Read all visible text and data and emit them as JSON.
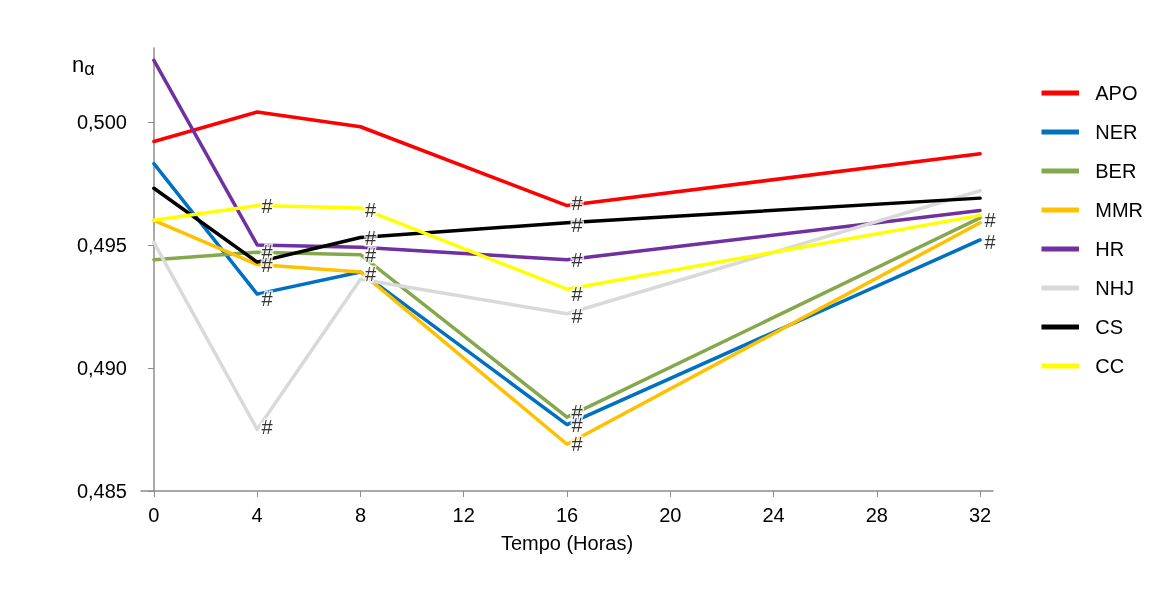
{
  "chart_data": {
    "type": "line",
    "xlabel": "Tempo (Horas)",
    "ylabel": "n$_{α}$",
    "x": [
      0,
      4,
      8,
      16,
      32
    ],
    "xlim": [
      -0.5,
      32.5
    ],
    "xticks": [
      0,
      4,
      8,
      12,
      16,
      20,
      24,
      28,
      32
    ],
    "ylim": [
      0.485,
      0.503
    ],
    "yticks": [
      {
        "value": 0.485,
        "label": "0,485"
      },
      {
        "value": 0.49,
        "label": "0,490"
      },
      {
        "value": 0.495,
        "label": "0,495"
      },
      {
        "value": 0.5,
        "label": "0,500"
      }
    ],
    "grid": false,
    "legend": "right",
    "marker": "none",
    "line_style": "solid",
    "series": [
      {
        "name": "APO",
        "color": "#ff0000",
        "values": [
          0.4992,
          0.5004,
          0.4998,
          0.4966,
          0.4987
        ]
      },
      {
        "name": "NER",
        "color": "#0070c0",
        "values": [
          0.4983,
          0.493,
          0.4939,
          0.4877,
          0.4952
        ]
      },
      {
        "name": "BER",
        "color": "#86a84d",
        "values": [
          0.4944,
          0.4947,
          0.4946,
          0.488,
          0.4961
        ]
      },
      {
        "name": "MMR",
        "color": "#ffc000",
        "values": [
          0.496,
          0.4942,
          0.4939,
          0.4869,
          0.4959
        ]
      },
      {
        "name": "HR",
        "color": "#7030a0",
        "values": [
          0.5025,
          0.495,
          0.4949,
          0.4944,
          0.4964
        ]
      },
      {
        "name": "NHJ",
        "color": "#d9d9d9",
        "values": [
          0.4951,
          0.4875,
          0.4936,
          0.4922,
          0.4972
        ]
      },
      {
        "name": "CS",
        "color": "#000000",
        "values": [
          0.4973,
          0.4943,
          0.4953,
          0.4959,
          0.4969
        ]
      },
      {
        "name": "CC",
        "color": "#ffff00",
        "values": [
          0.496,
          0.4966,
          0.4965,
          0.4932,
          0.4962
        ]
      }
    ],
    "annotations": [
      {
        "text": "#",
        "x": 4,
        "y": 0.4966
      },
      {
        "text": "#",
        "x": 4,
        "y": 0.4947
      },
      {
        "text": "#",
        "x": 4,
        "y": 0.4942
      },
      {
        "text": "#",
        "x": 4,
        "y": 0.4928
      },
      {
        "text": "#",
        "x": 4,
        "y": 0.4876
      },
      {
        "text": "#",
        "x": 8,
        "y": 0.4964
      },
      {
        "text": "#",
        "x": 8,
        "y": 0.4953
      },
      {
        "text": "#",
        "x": 8,
        "y": 0.4946
      },
      {
        "text": "#",
        "x": 8,
        "y": 0.4938
      },
      {
        "text": "#",
        "x": 16,
        "y": 0.4967
      },
      {
        "text": "#",
        "x": 16,
        "y": 0.4958
      },
      {
        "text": "#",
        "x": 16,
        "y": 0.4944
      },
      {
        "text": "#",
        "x": 16,
        "y": 0.493
      },
      {
        "text": "#",
        "x": 16,
        "y": 0.4921
      },
      {
        "text": "#",
        "x": 16,
        "y": 0.4882
      },
      {
        "text": "#",
        "x": 16,
        "y": 0.4877
      },
      {
        "text": "#",
        "x": 16,
        "y": 0.4869
      },
      {
        "text": "#",
        "x": 32,
        "y": 0.496
      },
      {
        "text": "#",
        "x": 32,
        "y": 0.4951
      }
    ]
  }
}
